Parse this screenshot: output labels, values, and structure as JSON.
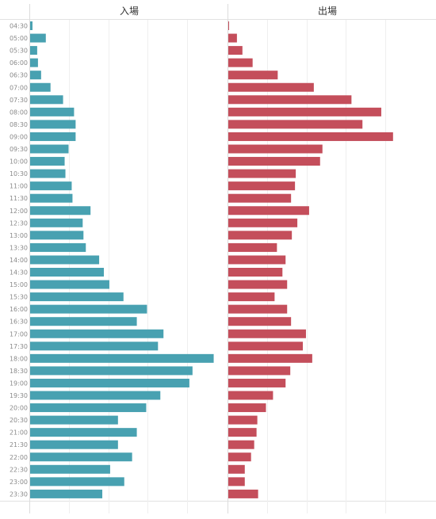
{
  "chart_data": {
    "type": "bar",
    "orientation": "horizontal",
    "categories": [
      "04:30",
      "05:00",
      "05:30",
      "06:00",
      "06:30",
      "07:00",
      "07:30",
      "08:00",
      "08:30",
      "09:00",
      "09:30",
      "10:00",
      "10:30",
      "11:00",
      "11:30",
      "12:00",
      "12:30",
      "13:00",
      "13:30",
      "14:00",
      "14:30",
      "15:00",
      "15:30",
      "16:00",
      "16:30",
      "17:00",
      "17:30",
      "18:00",
      "18:30",
      "19:00",
      "19:30",
      "20:00",
      "20:30",
      "21:00",
      "21:30",
      "22:00",
      "22:30",
      "23:00",
      "23:30"
    ],
    "panels": [
      {
        "title": "入場",
        "color": "#48a1b1",
        "values": [
          3,
          20,
          9,
          10,
          14,
          26,
          42,
          56,
          58,
          58,
          49,
          44,
          45,
          53,
          54,
          77,
          67,
          68,
          71,
          88,
          94,
          101,
          119,
          149,
          136,
          170,
          163,
          234,
          207,
          203,
          166,
          148,
          112,
          136,
          112,
          130,
          102,
          120,
          92
        ]
      },
      {
        "title": "出場",
        "color": "#c44e5b",
        "values": [
          1,
          11,
          18,
          31,
          63,
          109,
          157,
          195,
          171,
          210,
          120,
          117,
          86,
          85,
          80,
          103,
          88,
          81,
          62,
          73,
          69,
          75,
          59,
          75,
          80,
          99,
          95,
          107,
          79,
          73,
          57,
          48,
          37,
          36,
          33,
          29,
          21,
          21,
          38
        ]
      }
    ],
    "xlim": [
      0,
      240
    ],
    "gridline_step": 50,
    "legend": "none"
  }
}
